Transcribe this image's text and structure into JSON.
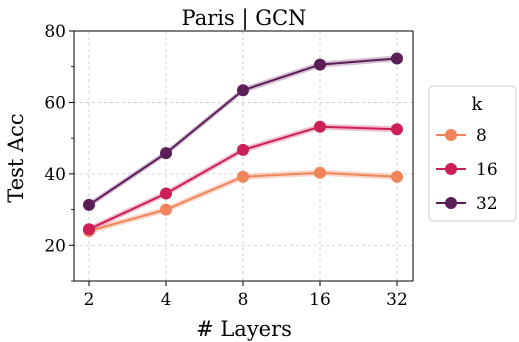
{
  "chart_data": {
    "type": "line",
    "title": "Paris | GCN",
    "xlabel": "# Layers",
    "ylabel": "Test Acc",
    "categories": [
      "2",
      "4",
      "8",
      "16",
      "32"
    ],
    "yticks": [
      "20",
      "40",
      "60",
      "80"
    ],
    "ylim": [
      10,
      80
    ],
    "grid": true,
    "legend": {
      "title": "k",
      "placement": "right-outside"
    },
    "series": [
      {
        "name": "8",
        "color": "#f0855c",
        "band": "#f6b49a",
        "values": [
          24.0,
          30.0,
          39.2,
          40.3,
          39.2
        ]
      },
      {
        "name": "16",
        "color": "#cc1f56",
        "band": "#e58aa6",
        "values": [
          24.5,
          34.5,
          46.7,
          53.2,
          52.5
        ]
      },
      {
        "name": "32",
        "color": "#5a1f56",
        "band": "#b48ab0",
        "values": [
          31.3,
          45.8,
          63.4,
          70.6,
          72.3
        ]
      }
    ]
  }
}
